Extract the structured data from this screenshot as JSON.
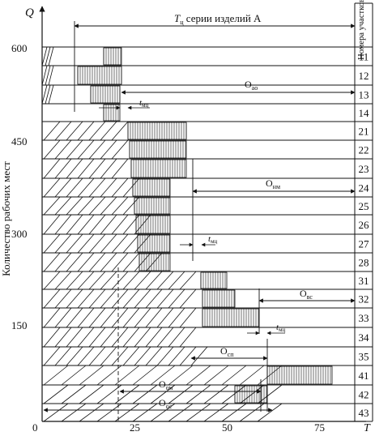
{
  "axes": {
    "y_label": "Количество рабочих мест",
    "y_symbol": "Q",
    "x_symbol": "T",
    "origin": "0",
    "y_ticks": [
      "600",
      "450",
      "300",
      "150"
    ],
    "x_ticks": [
      "25",
      "50",
      "75"
    ]
  },
  "sections_header": "Номера участков",
  "sections": [
    "11",
    "12",
    "13",
    "14",
    "21",
    "22",
    "23",
    "24",
    "25",
    "26",
    "27",
    "28",
    "31",
    "32",
    "33",
    "34",
    "35",
    "41",
    "42",
    "43"
  ],
  "annotations": {
    "tc_main": "T",
    "tc_sub": "ц",
    "tc_rest": " серии изделий А",
    "o_ao": "O",
    "o_ao_sub": "ао",
    "o_nm": "O",
    "o_nm_sub": "нм",
    "o_vs": "O",
    "o_vs_sub": "вс",
    "o_sp": "O",
    "o_sp_sub": "сп",
    "o_om": "O",
    "o_om_sub": "ом",
    "o_os": "O",
    "o_os_sub": "ос",
    "t_mc_main": "t",
    "t_mc_sub": "мц"
  },
  "colors": {
    "ink": "#111111",
    "background": "#ffffff"
  }
}
